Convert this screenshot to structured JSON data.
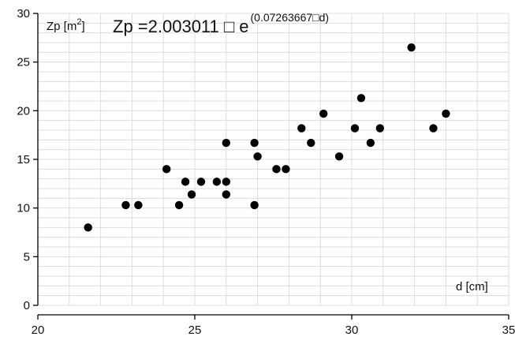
{
  "chart_data": {
    "type": "scatter",
    "title": "",
    "xlabel": "d [cm]",
    "ylabel": "Zp [m²]",
    "ylabel_base": "Zp [m",
    "ylabel_sup": "2",
    "ylabel_end": "]",
    "equation": {
      "main": "Zp =2.003011 □ e",
      "exponent": "(0.07263667□d)"
    },
    "xlim": [
      20,
      35
    ],
    "ylim": [
      0,
      30
    ],
    "xticks": [
      20,
      25,
      30,
      35
    ],
    "yticks": [
      0,
      5,
      10,
      15,
      20,
      25,
      30
    ],
    "grid": true,
    "legend": "none",
    "marker_color": "#000000",
    "grid_color": "#dcdcdc",
    "series": [
      {
        "x": [
          21.6,
          22.8,
          23.2,
          24.1,
          24.5,
          24.7,
          24.9,
          25.2,
          25.7,
          26.0,
          26.0,
          26.0,
          26.9,
          26.9,
          27.0,
          27.6,
          27.9,
          28.4,
          28.7,
          29.1,
          29.6,
          30.1,
          30.3,
          30.6,
          30.9,
          31.9,
          32.6,
          33.0
        ],
        "y": [
          8.0,
          10.3,
          10.3,
          14.0,
          10.3,
          12.7,
          11.4,
          12.7,
          12.7,
          12.7,
          11.4,
          16.7,
          16.7,
          10.3,
          15.3,
          14.0,
          14.0,
          18.2,
          16.7,
          19.7,
          15.3,
          18.2,
          21.3,
          16.7,
          18.2,
          26.5,
          18.2,
          19.7
        ]
      }
    ]
  }
}
